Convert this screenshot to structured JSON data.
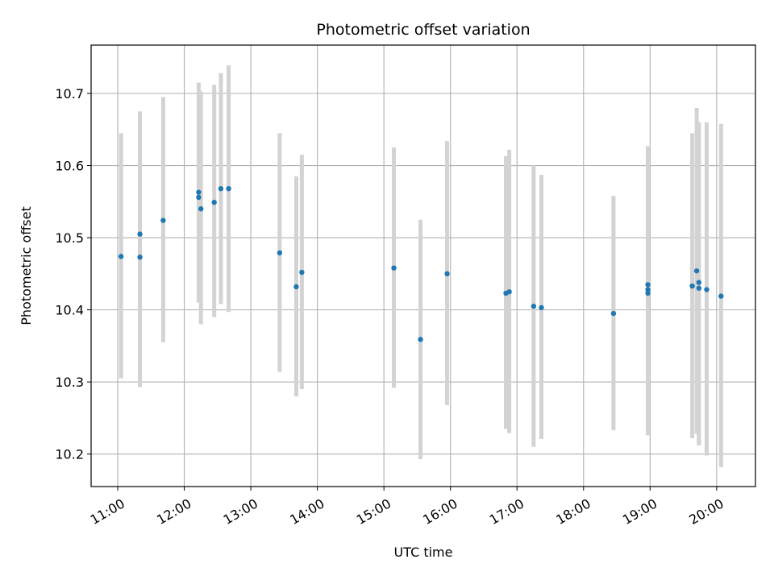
{
  "chart_data": {
    "type": "scatter",
    "title": "Photometric offset variation",
    "xlabel": "UTC time",
    "ylabel": "Photometric offset",
    "x_unit": "UTC time (HH:MM)",
    "x_ticks": [
      "11:00",
      "12:00",
      "13:00",
      "14:00",
      "15:00",
      "16:00",
      "17:00",
      "18:00",
      "19:00",
      "20:00"
    ],
    "y_ticks": [
      "10.2",
      "10.3",
      "10.4",
      "10.5",
      "10.6",
      "10.7"
    ],
    "xlim": [
      "10:36",
      "20:35"
    ],
    "ylim": [
      10.155,
      10.767
    ],
    "grid": true,
    "error_bar_color": "#d3d3d3",
    "marker_color": "#1f77b4",
    "series": [
      {
        "points": [
          {
            "x": "11:03",
            "y": 10.474,
            "lo": 10.305,
            "hi": 10.645
          },
          {
            "x": "11:20",
            "y": 10.505,
            "lo": 10.335,
            "hi": 10.675
          },
          {
            "x": "11:20",
            "y": 10.473,
            "lo": 10.293,
            "hi": 10.65
          },
          {
            "x": "11:41",
            "y": 10.524,
            "lo": 10.355,
            "hi": 10.695
          },
          {
            "x": "12:13",
            "y": 10.563,
            "lo": 10.41,
            "hi": 10.715
          },
          {
            "x": "12:13",
            "y": 10.556,
            "lo": 10.42,
            "hi": 10.7
          },
          {
            "x": "12:15",
            "y": 10.54,
            "lo": 10.38,
            "hi": 10.703
          },
          {
            "x": "12:27",
            "y": 10.549,
            "lo": 10.39,
            "hi": 10.712
          },
          {
            "x": "12:33",
            "y": 10.568,
            "lo": 10.408,
            "hi": 10.728
          },
          {
            "x": "12:40",
            "y": 10.568,
            "lo": 10.397,
            "hi": 10.739
          },
          {
            "x": "13:26",
            "y": 10.479,
            "lo": 10.314,
            "hi": 10.645
          },
          {
            "x": "13:41",
            "y": 10.432,
            "lo": 10.28,
            "hi": 10.585
          },
          {
            "x": "13:46",
            "y": 10.452,
            "lo": 10.29,
            "hi": 10.615
          },
          {
            "x": "15:09",
            "y": 10.458,
            "lo": 10.292,
            "hi": 10.625
          },
          {
            "x": "15:33",
            "y": 10.359,
            "lo": 10.193,
            "hi": 10.525
          },
          {
            "x": "15:57",
            "y": 10.45,
            "lo": 10.268,
            "hi": 10.634
          },
          {
            "x": "16:50",
            "y": 10.423,
            "lo": 10.235,
            "hi": 10.613
          },
          {
            "x": "16:53",
            "y": 10.425,
            "lo": 10.229,
            "hi": 10.622
          },
          {
            "x": "17:15",
            "y": 10.405,
            "lo": 10.21,
            "hi": 10.6
          },
          {
            "x": "17:22",
            "y": 10.403,
            "lo": 10.221,
            "hi": 10.587
          },
          {
            "x": "18:27",
            "y": 10.395,
            "lo": 10.233,
            "hi": 10.558
          },
          {
            "x": "18:58",
            "y": 10.435,
            "lo": 10.245,
            "hi": 10.627
          },
          {
            "x": "18:58",
            "y": 10.428,
            "lo": 10.23,
            "hi": 10.622
          },
          {
            "x": "18:58",
            "y": 10.423,
            "lo": 10.226,
            "hi": 10.62
          },
          {
            "x": "19:38",
            "y": 10.433,
            "lo": 10.222,
            "hi": 10.645
          },
          {
            "x": "19:42",
            "y": 10.454,
            "lo": 10.228,
            "hi": 10.68
          },
          {
            "x": "19:44",
            "y": 10.438,
            "lo": 10.212,
            "hi": 10.66
          },
          {
            "x": "19:44",
            "y": 10.43,
            "lo": 10.215,
            "hi": 10.655
          },
          {
            "x": "19:51",
            "y": 10.428,
            "lo": 10.198,
            "hi": 10.66
          },
          {
            "x": "20:04",
            "y": 10.419,
            "lo": 10.182,
            "hi": 10.658
          }
        ]
      }
    ]
  }
}
